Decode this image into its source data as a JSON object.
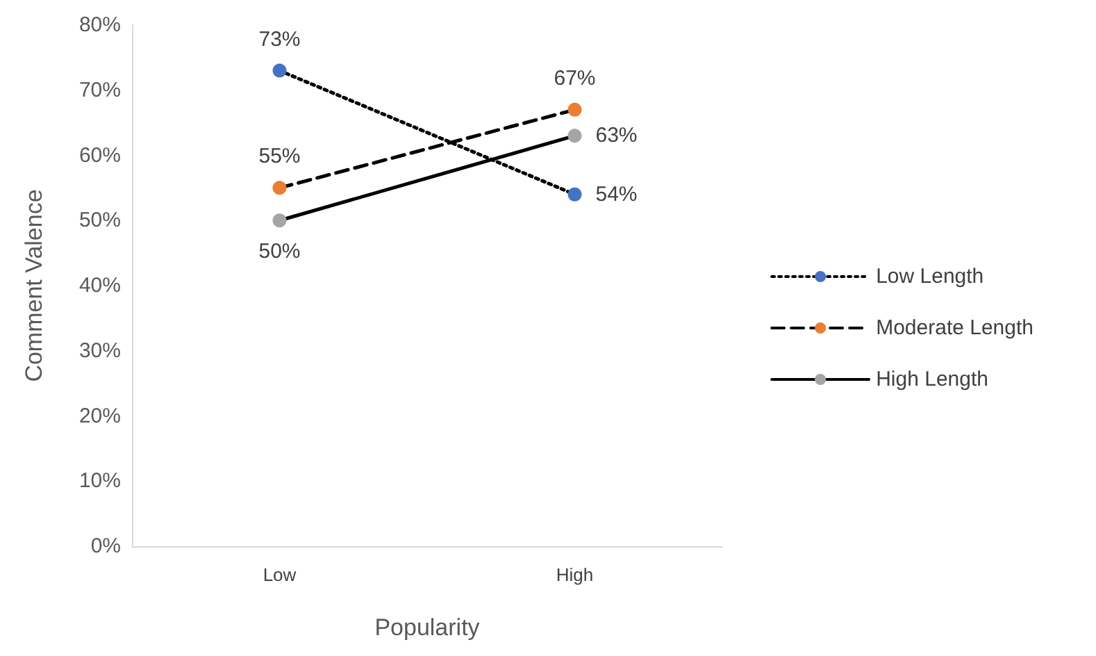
{
  "chart_data": {
    "type": "line",
    "xlabel": "Popularity",
    "ylabel": "Comment Valence",
    "categories": [
      "Low",
      "High"
    ],
    "series": [
      {
        "name": "Low Length",
        "color": "#4472c4",
        "line_style": "dotted",
        "values": [
          73,
          54
        ],
        "value_labels": [
          "73%",
          "54%"
        ]
      },
      {
        "name": "Moderate Length",
        "color": "#ed7d31",
        "line_style": "dashed",
        "values": [
          55,
          67
        ],
        "value_labels": [
          "55%",
          "67%"
        ]
      },
      {
        "name": "High Length",
        "color": "#a5a5a5",
        "line_style": "solid",
        "values": [
          50,
          63
        ],
        "value_labels": [
          "50%",
          "63%"
        ]
      }
    ],
    "ylim": [
      0,
      80
    ],
    "yticks": [
      {
        "value": 0,
        "label": "0%"
      },
      {
        "value": 10,
        "label": "10%"
      },
      {
        "value": 20,
        "label": "20%"
      },
      {
        "value": 30,
        "label": "30%"
      },
      {
        "value": 40,
        "label": "40%"
      },
      {
        "value": 50,
        "label": "50%"
      },
      {
        "value": 60,
        "label": "60%"
      },
      {
        "value": 70,
        "label": "70%"
      },
      {
        "value": 80,
        "label": "80%"
      }
    ],
    "grid": false,
    "legend": "right",
    "marker": "circle"
  }
}
